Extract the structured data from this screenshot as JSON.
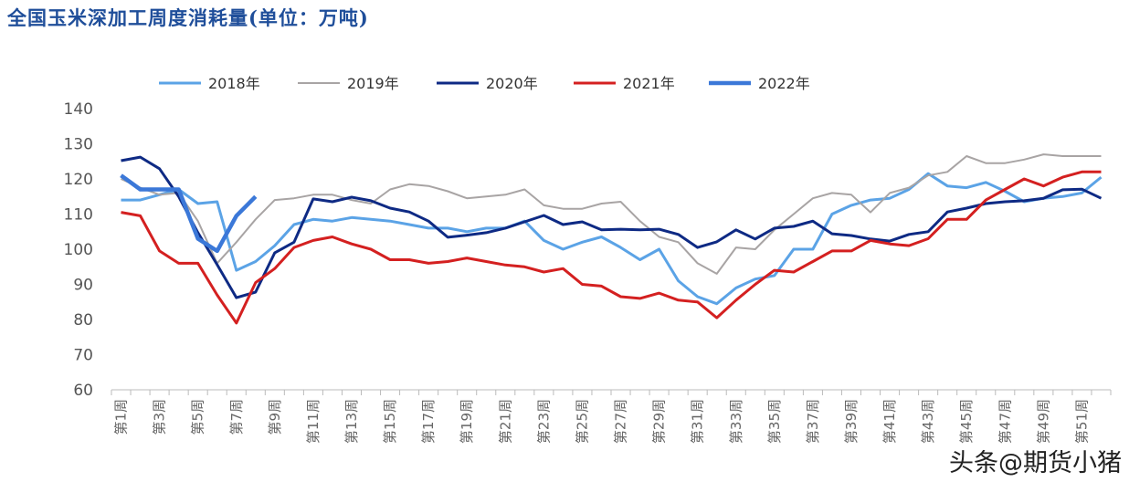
{
  "title": "全国玉米深加工周度消耗量(单位：万吨)",
  "watermark": "头条@期货小猪",
  "chart_data": {
    "type": "line",
    "title": "全国玉米深加工周度消耗量(单位：万吨)",
    "xlabel": "",
    "ylabel": "",
    "ylim": [
      60,
      140
    ],
    "yticks": [
      60,
      70,
      80,
      90,
      100,
      110,
      120,
      130,
      140
    ],
    "grid": false,
    "legend": "top",
    "x_tick_labels": [
      "第1周",
      "第3周",
      "第5周",
      "第7周",
      "第9周",
      "第11周",
      "第13周",
      "第15周",
      "第17周",
      "第19周",
      "第21周",
      "第23周",
      "第25周",
      "第27周",
      "第29周",
      "第31周",
      "第33周",
      "第35周",
      "第37周",
      "第39周",
      "第41周",
      "第43周",
      "第45周",
      "第47周",
      "第49周",
      "第51周"
    ],
    "series": [
      {
        "name": "2018年",
        "color": "#5ba3e6",
        "values": [
          114,
          114,
          115.5,
          117,
          113,
          113.5,
          94,
          96.5,
          101,
          107,
          108.5,
          108,
          109,
          108.5,
          108,
          107,
          106,
          106,
          105,
          106,
          106,
          108,
          102.5,
          100,
          102,
          103.5,
          100.5,
          97,
          100,
          91,
          86.5,
          84.5,
          89,
          91.5,
          92.5,
          100,
          100,
          110,
          112.5,
          114,
          114.5,
          117,
          121.5,
          118,
          117.5,
          119,
          116.5,
          113.5,
          114.5,
          115,
          116,
          120.5
        ]
      },
      {
        "name": "2019年",
        "color": "#a8a4a4",
        "values": [
          120,
          117.5,
          115.5,
          116,
          108,
          96,
          102,
          108.5,
          114,
          114.5,
          115.5,
          115.5,
          114,
          113,
          117,
          118.5,
          118,
          116.5,
          114.5,
          115,
          115.5,
          117,
          112.5,
          111.5,
          111.5,
          113,
          113.5,
          108,
          103.5,
          102,
          96,
          93,
          100.5,
          100,
          105.5,
          110,
          114.5,
          116,
          115.5,
          110.5,
          116,
          117.5,
          121,
          122,
          126.5,
          124.5,
          124.5,
          125.5,
          127,
          126.5,
          126.5,
          126.5
        ]
      },
      {
        "name": "2020年",
        "color": "#0e2a84",
        "values": [
          125.2,
          126.2,
          122.9,
          115,
          104.7,
          95.6,
          86.2,
          87.8,
          99,
          102,
          114.3,
          113.5,
          114.8,
          113.8,
          111.7,
          110.6,
          108,
          103.4,
          104,
          104.7,
          106,
          107.8,
          109.6,
          107,
          107.8,
          105.5,
          105.7,
          105.5,
          105.7,
          104.2,
          100.5,
          102.1,
          105.5,
          102.9,
          106,
          106.5,
          108,
          104.4,
          103.9,
          102.9,
          102.3,
          104.2,
          105,
          110.6,
          111.7,
          113,
          113.5,
          113.8,
          114.5,
          116.9,
          117.1,
          114.5
        ]
      },
      {
        "name": "2021年",
        "color": "#d42020",
        "values": [
          110.5,
          109.5,
          99.5,
          96,
          96,
          87,
          79,
          90.5,
          94.5,
          100.5,
          102.5,
          103.5,
          101.5,
          100,
          97,
          97,
          96,
          96.5,
          97.5,
          96.5,
          95.5,
          95,
          93.5,
          94.5,
          90,
          89.5,
          86.5,
          86,
          87.5,
          85.5,
          85,
          80.5,
          85.5,
          90,
          94,
          93.5,
          96.5,
          99.5,
          99.5,
          102.5,
          101.5,
          101,
          103,
          108.5,
          108.5,
          114,
          117,
          120,
          118,
          120.5,
          122,
          122
        ]
      },
      {
        "name": "2022年",
        "color": "#3b78d8",
        "values": [
          121,
          117,
          117,
          117,
          103,
          99.5,
          109.5,
          115
        ]
      }
    ]
  }
}
